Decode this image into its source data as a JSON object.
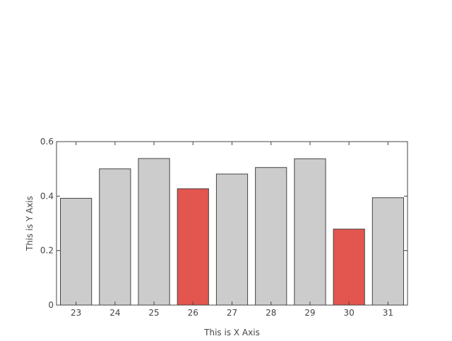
{
  "chart_data": {
    "type": "bar",
    "title": "",
    "xlabel": "This is X Axis",
    "ylabel": "This is Y Axis",
    "categories": [
      "23",
      "24",
      "25",
      "26",
      "27",
      "28",
      "29",
      "30",
      "31"
    ],
    "values": [
      0.392,
      0.5,
      0.538,
      0.427,
      0.481,
      0.505,
      0.537,
      0.279,
      0.394
    ],
    "highlighted": [
      "26",
      "30"
    ],
    "ylim": [
      0,
      0.6
    ],
    "yticks": [
      0,
      0.2,
      0.4,
      0.6
    ],
    "ytick_labels": [
      "0",
      "0.2",
      "0.4",
      "0.6"
    ],
    "colors": {
      "bar_default": "#cccccc",
      "bar_highlight": "#e3554f",
      "bar_outline": "#444444",
      "axis": "#444444"
    },
    "grid": false,
    "legend": "none"
  }
}
